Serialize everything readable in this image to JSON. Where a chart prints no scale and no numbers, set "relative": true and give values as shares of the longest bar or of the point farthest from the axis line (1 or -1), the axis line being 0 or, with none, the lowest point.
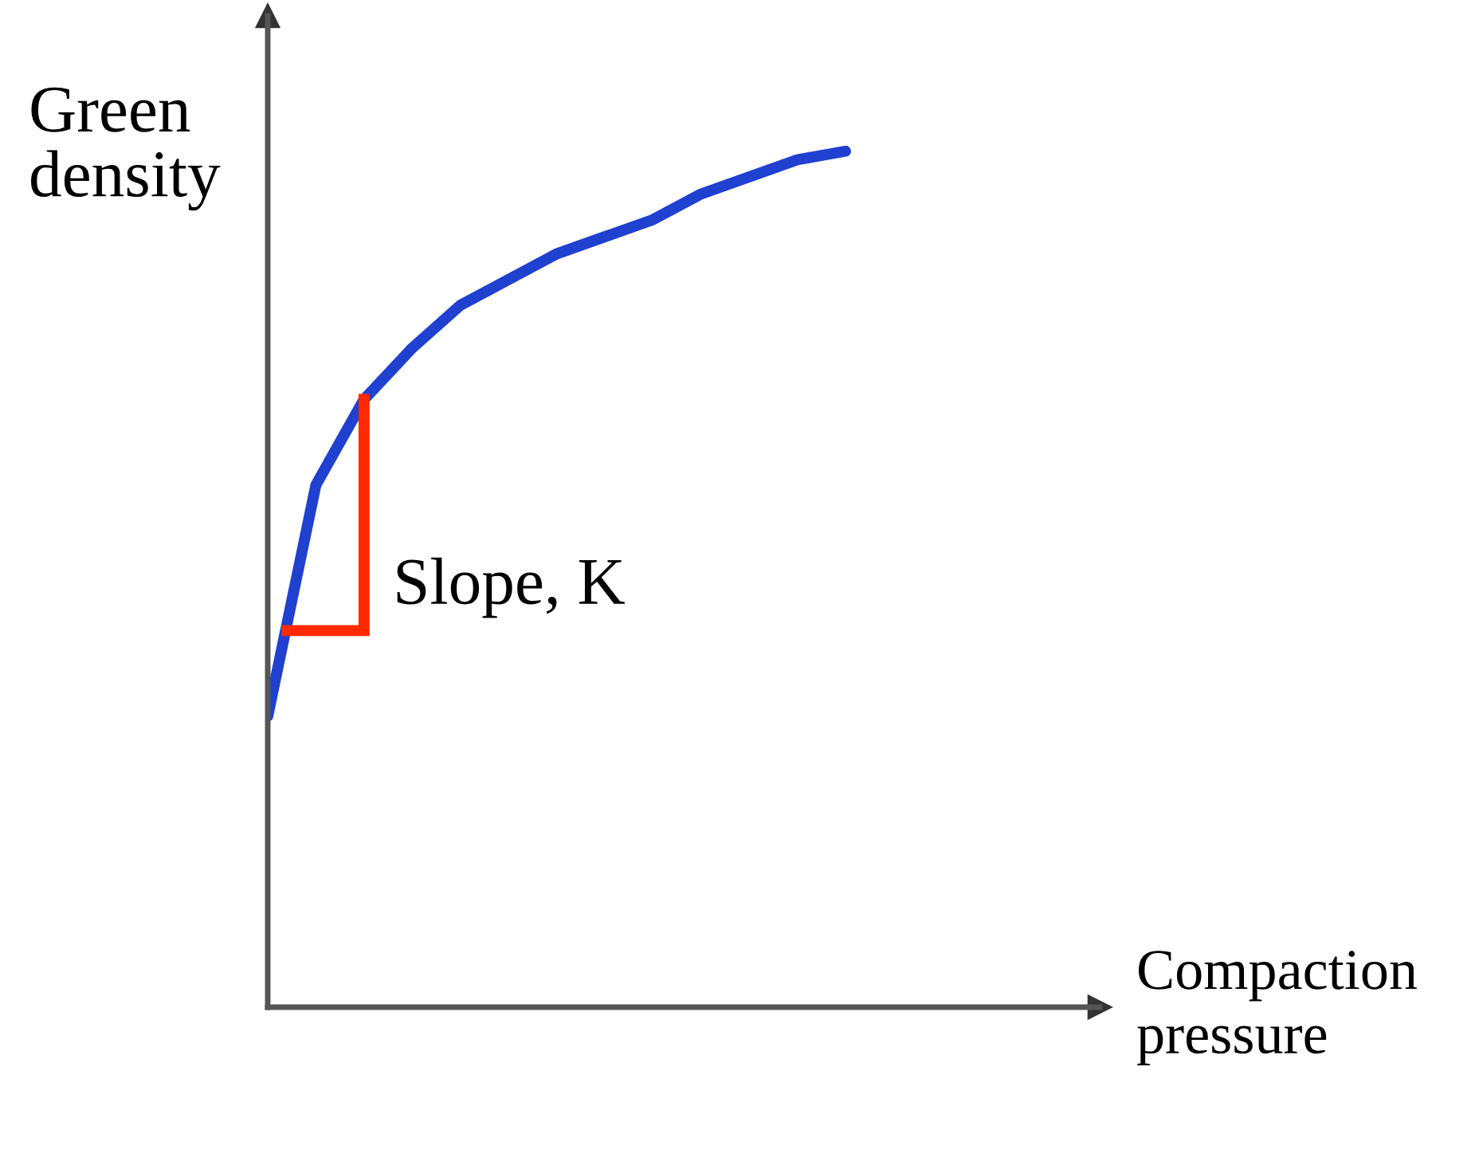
{
  "chart_data": {
    "type": "line",
    "relative": true,
    "xlabel": "Compaction\npressure",
    "ylabel": "Green\ndensity",
    "categories": [
      null,
      null,
      null,
      null,
      null,
      null,
      null,
      null,
      null,
      null,
      null,
      null,
      null
    ],
    "series": [
      {
        "color": "#2040d0",
        "values": [
          0.34,
          0.61,
          0.71,
          0.77,
          0.82,
          0.85,
          0.88,
          0.9,
          0.92,
          0.95,
          0.97,
          0.99,
          1.0
        ]
      }
    ],
    "annotations": [
      "Slope, K"
    ],
    "grid": false,
    "legend": false,
    "marker": "none",
    "line_style": "solid"
  }
}
